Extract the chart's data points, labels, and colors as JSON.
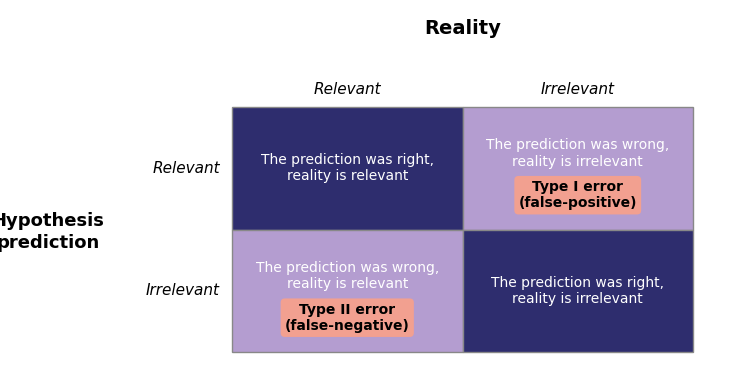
{
  "title": "Reality",
  "ylabel_line1": "Hypothesis",
  "ylabel_line2": "prediction",
  "col_labels": [
    "Relevant",
    "Irrelevant"
  ],
  "row_labels": [
    "Relevant",
    "Irrelevant"
  ],
  "cells": [
    {
      "row": 0,
      "col": 0,
      "bg_color": "#2e2d6e",
      "text": "The prediction was right,\nreality is relevant",
      "text_color": "#ffffff",
      "highlight": null
    },
    {
      "row": 0,
      "col": 1,
      "bg_color": "#b49dd0",
      "text": "The prediction was wrong,\nreality is irrelevant",
      "text_color": "#ffffff",
      "highlight": "Type I error\n(false-positive)",
      "highlight_bg": "#f2a090",
      "highlight_color": "#000000"
    },
    {
      "row": 1,
      "col": 0,
      "bg_color": "#b49dd0",
      "text": "The prediction was wrong,\nreality is relevant",
      "text_color": "#ffffff",
      "highlight": "Type II error\n(false-negative)",
      "highlight_bg": "#f2a090",
      "highlight_color": "#000000"
    },
    {
      "row": 1,
      "col": 1,
      "bg_color": "#2e2d6e",
      "text": "The prediction was right,\nreality is irrelevant",
      "text_color": "#ffffff",
      "highlight": null
    }
  ],
  "grid_color": "#888888",
  "background_color": "#ffffff",
  "text_fontsize": 10,
  "highlight_fontsize": 10,
  "col_label_fontsize": 11,
  "row_label_fontsize": 11,
  "title_fontsize": 14,
  "ylabel_fontsize": 13
}
